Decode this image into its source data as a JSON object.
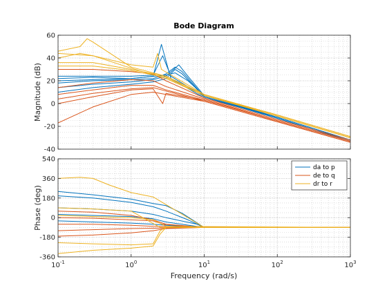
{
  "chart_data": {
    "type": "line",
    "title": "Bode Diagram",
    "xlabel": "Frequency  (rad/s)",
    "xscale": "log",
    "xlim": [
      0.1,
      1000
    ],
    "x_ticks": [
      0.1,
      1,
      10,
      100,
      1000
    ],
    "x_tick_labels": [
      {
        "base": "10",
        "exp": "-1"
      },
      {
        "base": "10",
        "exp": "0"
      },
      {
        "base": "10",
        "exp": "1"
      },
      {
        "base": "10",
        "exp": "2"
      },
      {
        "base": "10",
        "exp": "3"
      }
    ],
    "grid": true,
    "legend_position": "top-right",
    "series": [
      {
        "name": "da to p",
        "color": "#0072BD"
      },
      {
        "name": "de to q",
        "color": "#D95319"
      },
      {
        "name": "dr to r",
        "color": "#EDB120"
      }
    ],
    "panels": [
      {
        "id": "magnitude",
        "ylabel": "Magnitude (dB)",
        "ylim": [
          -40,
          60
        ],
        "y_ticks": [
          -40,
          -20,
          0,
          20,
          40,
          60
        ],
        "y_tick_labels": [
          "-40",
          "-20",
          "0",
          "20",
          "40",
          "60"
        ]
      },
      {
        "id": "phase",
        "ylabel": "Phase (deg)",
        "ylim": [
          -360,
          540
        ],
        "y_ticks": [
          -360,
          -180,
          0,
          180,
          360,
          540
        ],
        "y_tick_labels": [
          "-360",
          "-180",
          "0",
          "180",
          "360",
          "540"
        ]
      }
    ],
    "magnitude_curves": [
      {
        "series": 0,
        "points": [
          [
            0.1,
            22
          ],
          [
            0.3,
            23
          ],
          [
            1,
            22
          ],
          [
            2,
            24
          ],
          [
            2.6,
            52
          ],
          [
            3.5,
            22
          ],
          [
            10,
            5
          ],
          [
            100,
            -12
          ],
          [
            1000,
            -32
          ]
        ]
      },
      {
        "series": 0,
        "points": [
          [
            0.1,
            18
          ],
          [
            0.3,
            20
          ],
          [
            1,
            21
          ],
          [
            2,
            22
          ],
          [
            3,
            26
          ],
          [
            4,
            32
          ],
          [
            5,
            28
          ],
          [
            10,
            6
          ],
          [
            100,
            -13
          ],
          [
            1000,
            -33
          ]
        ]
      },
      {
        "series": 0,
        "points": [
          [
            0.1,
            14
          ],
          [
            0.3,
            17
          ],
          [
            1,
            19
          ],
          [
            2,
            21
          ],
          [
            3,
            24
          ],
          [
            4.5,
            34
          ],
          [
            6,
            24
          ],
          [
            10,
            7
          ],
          [
            100,
            -12
          ],
          [
            1000,
            -32
          ]
        ]
      },
      {
        "series": 0,
        "points": [
          [
            0.1,
            24
          ],
          [
            0.3,
            24
          ],
          [
            1,
            24
          ],
          [
            2,
            25
          ],
          [
            2.7,
            42
          ],
          [
            3.5,
            24
          ],
          [
            10,
            6
          ],
          [
            100,
            -12
          ],
          [
            1000,
            -32
          ]
        ]
      },
      {
        "series": 0,
        "points": [
          [
            0.1,
            10
          ],
          [
            0.3,
            14
          ],
          [
            1,
            17
          ],
          [
            2,
            19
          ],
          [
            3,
            22
          ],
          [
            4,
            30
          ],
          [
            5,
            26
          ],
          [
            10,
            6
          ],
          [
            100,
            -13
          ],
          [
            1000,
            -33
          ]
        ]
      },
      {
        "series": 0,
        "points": [
          [
            0.1,
            20
          ],
          [
            0.3,
            21
          ],
          [
            1,
            22
          ],
          [
            3,
            25
          ],
          [
            4,
            27
          ],
          [
            6,
            20
          ],
          [
            10,
            7
          ],
          [
            100,
            -12
          ],
          [
            1000,
            -32
          ]
        ]
      },
      {
        "series": 1,
        "points": [
          [
            0.1,
            0
          ],
          [
            0.3,
            6
          ],
          [
            1,
            12
          ],
          [
            2,
            13
          ],
          [
            2.7,
            0
          ],
          [
            3,
            9
          ],
          [
            10,
            3
          ],
          [
            100,
            -15
          ],
          [
            1000,
            -33
          ]
        ]
      },
      {
        "series": 1,
        "points": [
          [
            0.1,
            -17
          ],
          [
            0.3,
            -3
          ],
          [
            1,
            8
          ],
          [
            2,
            10
          ],
          [
            3,
            8
          ],
          [
            10,
            2
          ],
          [
            100,
            -16
          ],
          [
            1000,
            -34
          ]
        ]
      },
      {
        "series": 1,
        "points": [
          [
            0.1,
            8
          ],
          [
            0.3,
            12
          ],
          [
            1,
            16
          ],
          [
            2,
            16
          ],
          [
            3,
            12
          ],
          [
            10,
            3
          ],
          [
            100,
            -15
          ],
          [
            1000,
            -33
          ]
        ]
      },
      {
        "series": 1,
        "points": [
          [
            0.1,
            14
          ],
          [
            0.3,
            18
          ],
          [
            1,
            21
          ],
          [
            2,
            20
          ],
          [
            3,
            15
          ],
          [
            10,
            4
          ],
          [
            100,
            -15
          ],
          [
            1000,
            -33
          ]
        ]
      },
      {
        "series": 1,
        "points": [
          [
            0.1,
            4
          ],
          [
            0.3,
            9
          ],
          [
            1,
            13
          ],
          [
            2,
            14
          ],
          [
            3,
            11
          ],
          [
            10,
            2
          ],
          [
            100,
            -16
          ],
          [
            1000,
            -34
          ]
        ]
      },
      {
        "series": 1,
        "points": [
          [
            0.1,
            30
          ],
          [
            0.3,
            30
          ],
          [
            1,
            28
          ],
          [
            2,
            26
          ],
          [
            3,
            20
          ],
          [
            10,
            5
          ],
          [
            100,
            -14
          ],
          [
            1000,
            -32
          ]
        ]
      },
      {
        "series": 2,
        "points": [
          [
            0.1,
            46
          ],
          [
            0.2,
            50
          ],
          [
            0.25,
            57
          ],
          [
            0.3,
            54
          ],
          [
            1,
            32
          ],
          [
            3,
            24
          ],
          [
            10,
            8
          ],
          [
            100,
            -10
          ],
          [
            1000,
            -29
          ]
        ]
      },
      {
        "series": 2,
        "points": [
          [
            0.1,
            40
          ],
          [
            0.2,
            44
          ],
          [
            0.3,
            42
          ],
          [
            1,
            34
          ],
          [
            2,
            32
          ],
          [
            2.3,
            44
          ],
          [
            2.6,
            30
          ],
          [
            10,
            8
          ],
          [
            100,
            -11
          ],
          [
            1000,
            -30
          ]
        ]
      },
      {
        "series": 2,
        "points": [
          [
            0.1,
            36
          ],
          [
            0.3,
            36
          ],
          [
            1,
            30
          ],
          [
            3,
            24
          ],
          [
            10,
            8
          ],
          [
            100,
            -10
          ],
          [
            1000,
            -29
          ]
        ]
      },
      {
        "series": 2,
        "points": [
          [
            0.1,
            33
          ],
          [
            0.3,
            33
          ],
          [
            1,
            29
          ],
          [
            3,
            23
          ],
          [
            10,
            7
          ],
          [
            100,
            -11
          ],
          [
            1000,
            -30
          ]
        ]
      },
      {
        "series": 2,
        "points": [
          [
            0.1,
            44
          ],
          [
            0.3,
            42
          ],
          [
            1,
            31
          ],
          [
            3,
            22
          ],
          [
            10,
            7
          ],
          [
            100,
            -11
          ],
          [
            1000,
            -30
          ]
        ]
      }
    ],
    "phase_curves": [
      {
        "series": 0,
        "points": [
          [
            0.1,
            240
          ],
          [
            0.3,
            210
          ],
          [
            1,
            170
          ],
          [
            2,
            130
          ],
          [
            3,
            110
          ],
          [
            5,
            40
          ],
          [
            10,
            -90
          ],
          [
            1000,
            -90
          ]
        ]
      },
      {
        "series": 0,
        "points": [
          [
            0.1,
            200
          ],
          [
            0.3,
            180
          ],
          [
            1,
            140
          ],
          [
            2,
            100
          ],
          [
            3,
            60
          ],
          [
            6,
            -20
          ],
          [
            10,
            -90
          ],
          [
            1000,
            -90
          ]
        ]
      },
      {
        "series": 0,
        "points": [
          [
            0.1,
            90
          ],
          [
            0.3,
            80
          ],
          [
            1,
            60
          ],
          [
            2,
            30
          ],
          [
            3,
            0
          ],
          [
            8,
            -60
          ],
          [
            10,
            -90
          ],
          [
            1000,
            -90
          ]
        ]
      },
      {
        "series": 0,
        "points": [
          [
            0.1,
            -30
          ],
          [
            0.3,
            -40
          ],
          [
            1,
            -50
          ],
          [
            2,
            -60
          ],
          [
            3,
            -70
          ],
          [
            10,
            -90
          ],
          [
            1000,
            -90
          ]
        ]
      },
      {
        "series": 0,
        "points": [
          [
            0.1,
            30
          ],
          [
            0.3,
            20
          ],
          [
            1,
            10
          ],
          [
            2,
            -10
          ],
          [
            3,
            -40
          ],
          [
            10,
            -90
          ],
          [
            1000,
            -90
          ]
        ]
      },
      {
        "series": 1,
        "points": [
          [
            0.1,
            0
          ],
          [
            0.3,
            -5
          ],
          [
            1,
            -20
          ],
          [
            2,
            -30
          ],
          [
            2.7,
            -60
          ],
          [
            10,
            -90
          ],
          [
            1000,
            -90
          ]
        ]
      },
      {
        "series": 1,
        "points": [
          [
            0.1,
            -120
          ],
          [
            0.3,
            -110
          ],
          [
            1,
            -100
          ],
          [
            3,
            -95
          ],
          [
            10,
            -90
          ],
          [
            1000,
            -90
          ]
        ]
      },
      {
        "series": 1,
        "points": [
          [
            0.1,
            -170
          ],
          [
            0.3,
            -160
          ],
          [
            1,
            -140
          ],
          [
            2,
            -120
          ],
          [
            3,
            -100
          ],
          [
            10,
            -90
          ],
          [
            1000,
            -90
          ]
        ]
      },
      {
        "series": 1,
        "points": [
          [
            0.1,
            60
          ],
          [
            0.3,
            50
          ],
          [
            1,
            20
          ],
          [
            2,
            -20
          ],
          [
            3,
            -60
          ],
          [
            10,
            -90
          ],
          [
            1000,
            -90
          ]
        ]
      },
      {
        "series": 1,
        "points": [
          [
            0.1,
            -60
          ],
          [
            0.3,
            -60
          ],
          [
            1,
            -70
          ],
          [
            2,
            -80
          ],
          [
            10,
            -90
          ],
          [
            1000,
            -90
          ]
        ]
      },
      {
        "series": 2,
        "points": [
          [
            0.1,
            360
          ],
          [
            0.2,
            370
          ],
          [
            0.3,
            360
          ],
          [
            0.5,
            300
          ],
          [
            1,
            230
          ],
          [
            2,
            190
          ],
          [
            3,
            120
          ],
          [
            10,
            -90
          ],
          [
            1000,
            -90
          ]
        ]
      },
      {
        "series": 2,
        "points": [
          [
            0.1,
            90
          ],
          [
            0.3,
            80
          ],
          [
            1,
            60
          ],
          [
            2.5,
            -90
          ],
          [
            1000,
            -90
          ]
        ]
      },
      {
        "series": 2,
        "points": [
          [
            0.1,
            -230
          ],
          [
            0.3,
            -240
          ],
          [
            1,
            -250
          ],
          [
            2,
            -240
          ],
          [
            2.5,
            -120
          ],
          [
            3,
            -90
          ],
          [
            1000,
            -90
          ]
        ]
      },
      {
        "series": 2,
        "points": [
          [
            0.1,
            -330
          ],
          [
            0.3,
            -300
          ],
          [
            1,
            -280
          ],
          [
            2,
            -260
          ],
          [
            2.5,
            -150
          ],
          [
            3,
            -90
          ],
          [
            1000,
            -90
          ]
        ]
      },
      {
        "series": 2,
        "points": [
          [
            0.1,
            20
          ],
          [
            0.3,
            10
          ],
          [
            1,
            0
          ],
          [
            2,
            -20
          ],
          [
            3,
            -80
          ],
          [
            1000,
            -90
          ]
        ]
      }
    ]
  }
}
